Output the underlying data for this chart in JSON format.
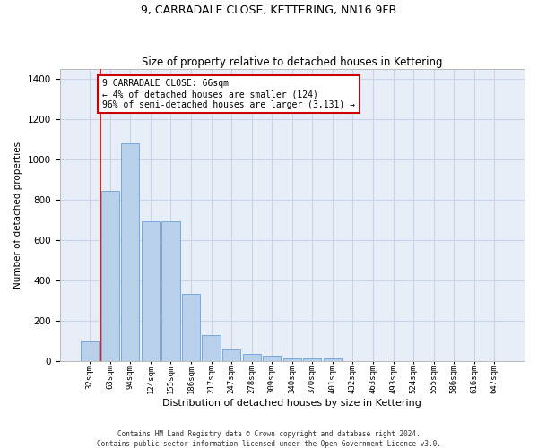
{
  "title": "9, CARRADALE CLOSE, KETTERING, NN16 9FB",
  "subtitle": "Size of property relative to detached houses in Kettering",
  "xlabel": "Distribution of detached houses by size in Kettering",
  "ylabel": "Number of detached properties",
  "categories": [
    "32sqm",
    "63sqm",
    "94sqm",
    "124sqm",
    "155sqm",
    "186sqm",
    "217sqm",
    "247sqm",
    "278sqm",
    "309sqm",
    "340sqm",
    "370sqm",
    "401sqm",
    "432sqm",
    "463sqm",
    "493sqm",
    "524sqm",
    "555sqm",
    "586sqm",
    "616sqm",
    "647sqm"
  ],
  "values": [
    100,
    845,
    1080,
    695,
    695,
    335,
    130,
    60,
    35,
    25,
    15,
    12,
    13,
    0,
    0,
    0,
    0,
    0,
    0,
    0,
    0
  ],
  "bar_color": "#b8d0ea",
  "bar_edge_color": "#6a9fd8",
  "grid_color": "#c8d4e8",
  "bg_color": "#e8eef8",
  "annotation_box_text": "9 CARRADALE CLOSE: 66sqm\n← 4% of detached houses are smaller (124)\n96% of semi-detached houses are larger (3,131) →",
  "annotation_box_color": "#cc0000",
  "property_line_x": 0.5,
  "ylim": [
    0,
    1450
  ],
  "yticks": [
    0,
    200,
    400,
    600,
    800,
    1000,
    1200,
    1400
  ],
  "footer1": "Contains HM Land Registry data © Crown copyright and database right 2024.",
  "footer2": "Contains public sector information licensed under the Open Government Licence v3.0."
}
